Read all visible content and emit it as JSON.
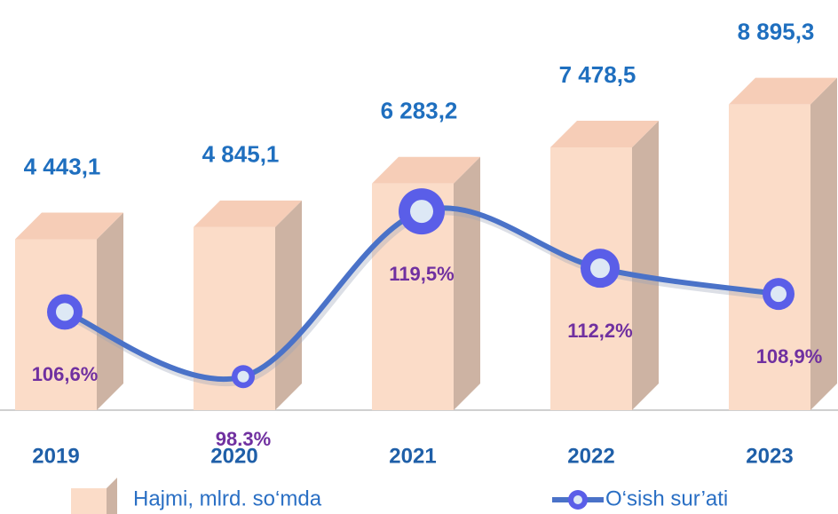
{
  "chart_data": {
    "type": "bar",
    "categories": [
      "2019",
      "2020",
      "2021",
      "2022",
      "2023"
    ],
    "series": [
      {
        "name": "Hajmi, mlrd. so‘mda",
        "type": "bar",
        "color": "#fbdcc8",
        "values": [
          4443.1,
          4845.1,
          6283.2,
          7478.5,
          8895.3
        ],
        "value_labels": [
          "4 443,1",
          "4 845,1",
          "6 283,2",
          "7 478,5",
          "8 895,3"
        ]
      },
      {
        "name": "O‘sish sur’ati",
        "type": "line",
        "axis": "y2",
        "color": "#4a72c8",
        "values": [
          106.6,
          98.3,
          119.5,
          112.2,
          108.9
        ],
        "value_labels": [
          "106,6%",
          "98.3%",
          "119,5%",
          "112,2%",
          "108,9%"
        ]
      }
    ],
    "ylim": [
      -1200,
      10000
    ],
    "y2lim": [
      94,
      137.5
    ]
  }
}
